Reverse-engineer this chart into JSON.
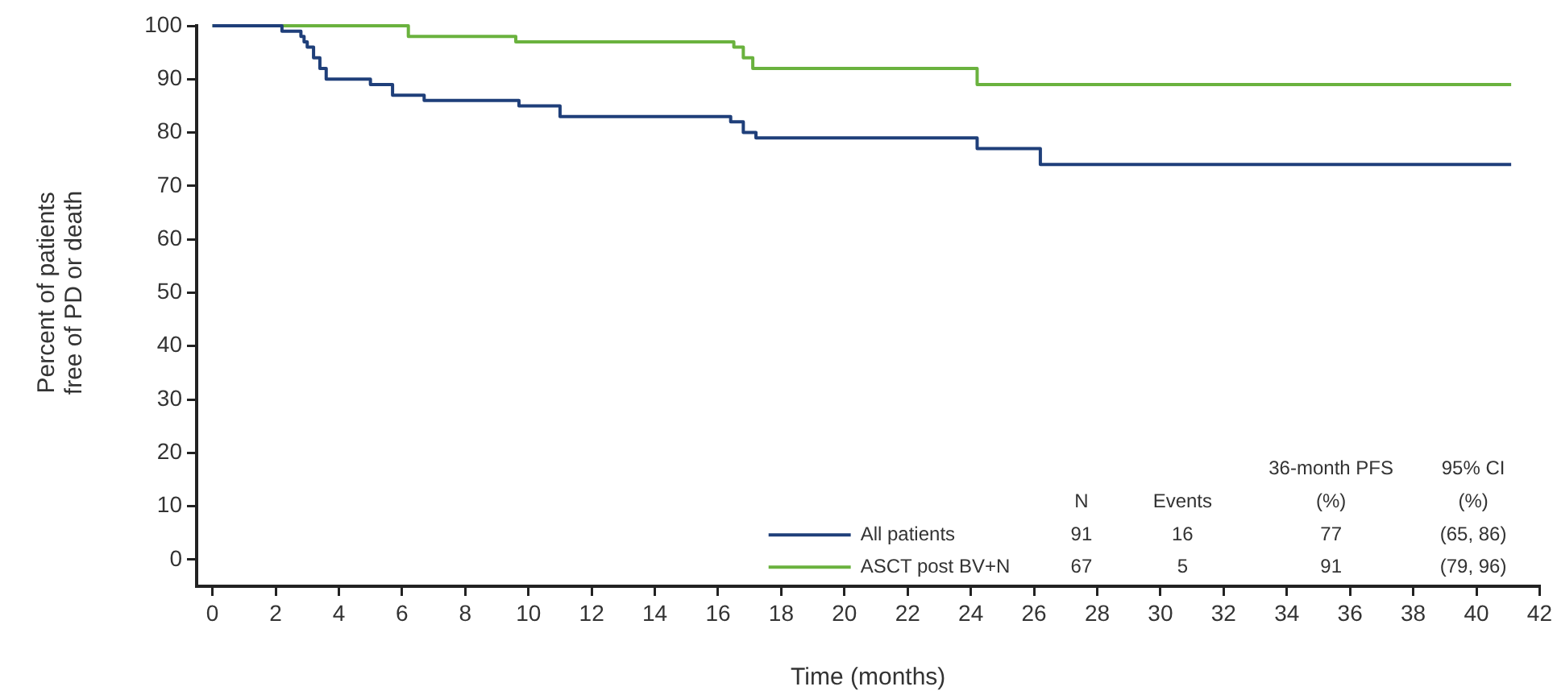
{
  "chart_data": {
    "type": "step",
    "xlabel": "Time (months)",
    "ylabel": "Percent of patients\nfree of PD or death",
    "xlim": [
      -0.5,
      42
    ],
    "xticks": [
      0,
      2,
      4,
      6,
      8,
      10,
      12,
      14,
      16,
      18,
      20,
      22,
      24,
      26,
      28,
      30,
      32,
      34,
      36,
      38,
      40,
      42
    ],
    "ylim": [
      -5,
      100
    ],
    "yticks": [
      0,
      10,
      20,
      30,
      40,
      50,
      60,
      70,
      80,
      90,
      100
    ],
    "grid": false,
    "legend": "bottom right",
    "marker": "none",
    "line_style": "solid",
    "series": [
      {
        "name": "All patients",
        "color": "#1f3f7a",
        "x": [
          0,
          2.2,
          2.8,
          2.9,
          3.0,
          3.2,
          3.4,
          3.6,
          5.0,
          5.7,
          6.7,
          9.7,
          11.0,
          16.4,
          16.8,
          17.2,
          24.2,
          26.2,
          41.1
        ],
        "values": [
          100,
          99,
          98,
          97,
          96,
          94,
          92,
          90,
          89,
          87,
          86,
          85,
          83,
          82,
          80,
          79,
          77,
          74,
          74
        ]
      },
      {
        "name": "ASCT post BV+N",
        "color": "#6ab23e",
        "x": [
          0,
          6.2,
          9.6,
          16.5,
          16.8,
          17.1,
          24.2,
          41.1
        ],
        "values": [
          100,
          98,
          97,
          96,
          94,
          92,
          89,
          89
        ]
      }
    ],
    "annotations": [
      "36-month PFS",
      "95% CI",
      "N",
      "Events",
      "(%)",
      "(%)",
      "91",
      "16",
      "77",
      "(65, 86)",
      "67",
      "5",
      "91",
      "(79, 96)"
    ]
  }
}
